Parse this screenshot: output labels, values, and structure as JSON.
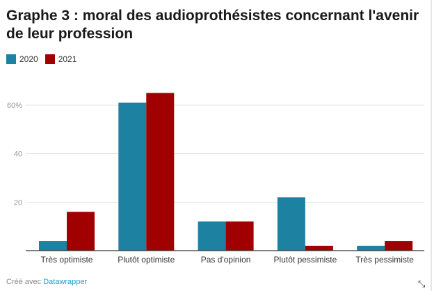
{
  "title": "Graphe 3 : moral des audioprothésistes concernant l'avenir de leur profession",
  "footer": {
    "prefix": "Créé avec",
    "link": "Datawrapper"
  },
  "resize_icon": "resize-diagonal-arrow-icon",
  "chart_data": {
    "type": "bar",
    "title": "Graphe 3 : moral des audioprothésistes concernant l'avenir de leur profession",
    "categories": [
      "Très optimiste",
      "Plutôt optimiste",
      "Pas d'opinion",
      "Plutôt pessimiste",
      "Très pessimiste"
    ],
    "series": [
      {
        "name": "2020",
        "color": "#1d81a2",
        "values": [
          4,
          61,
          12,
          22,
          2
        ]
      },
      {
        "name": "2021",
        "color": "#a00000",
        "values": [
          16,
          65,
          12,
          2,
          4
        ]
      }
    ],
    "yticks": [
      {
        "value": 20,
        "label": "20"
      },
      {
        "value": 40,
        "label": "40"
      },
      {
        "value": 60,
        "label": "60%"
      }
    ],
    "ylim": [
      0,
      68
    ],
    "grid": true,
    "legend": "top-left"
  }
}
